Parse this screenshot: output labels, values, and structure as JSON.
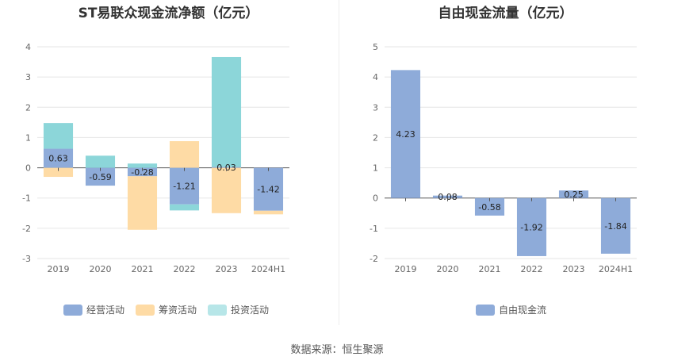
{
  "chart_data": [
    {
      "type": "bar",
      "stacked": true,
      "title": "ST易联众现金流净额（亿元）",
      "categories": [
        "2019",
        "2020",
        "2021",
        "2022",
        "2023",
        "2024H1"
      ],
      "series": [
        {
          "name": "经营活动",
          "color": "#8eabd9",
          "values": [
            0.63,
            -0.59,
            -0.28,
            -1.21,
            0.03,
            -1.42
          ]
        },
        {
          "name": "筹资活动",
          "color": "#fedba5",
          "values": [
            -0.3,
            0,
            -1.77,
            0.88,
            -1.5,
            -0.12
          ]
        },
        {
          "name": "投资活动",
          "color": "#8cd6d9",
          "values": [
            0.85,
            0.4,
            0.14,
            -0.2,
            3.63,
            0
          ]
        }
      ],
      "data_labels": [
        "0.63",
        "-0.59",
        "-0.28",
        "-1.21",
        "0.03",
        "-1.42"
      ],
      "yticks": [
        4,
        3,
        2,
        1,
        0,
        -1,
        -2,
        -3
      ],
      "ylim": [
        -3,
        4
      ],
      "legend_position": "bottom"
    },
    {
      "type": "bar",
      "title": "自由现金流量（亿元）",
      "categories": [
        "2019",
        "2020",
        "2021",
        "2022",
        "2023",
        "2024H1"
      ],
      "series": [
        {
          "name": "自由现金流",
          "color": "#8eabd9",
          "values": [
            4.23,
            0.08,
            -0.58,
            -1.92,
            0.25,
            -1.84
          ]
        }
      ],
      "data_labels": [
        "4.23",
        "0.08",
        "-0.58",
        "-1.92",
        "0.25",
        "-1.84"
      ],
      "yticks": [
        5,
        4,
        3,
        2,
        1,
        0,
        -1,
        -2
      ],
      "ylim": [
        -2,
        5
      ],
      "legend_position": "bottom"
    }
  ],
  "source": "数据来源：恒生聚源"
}
